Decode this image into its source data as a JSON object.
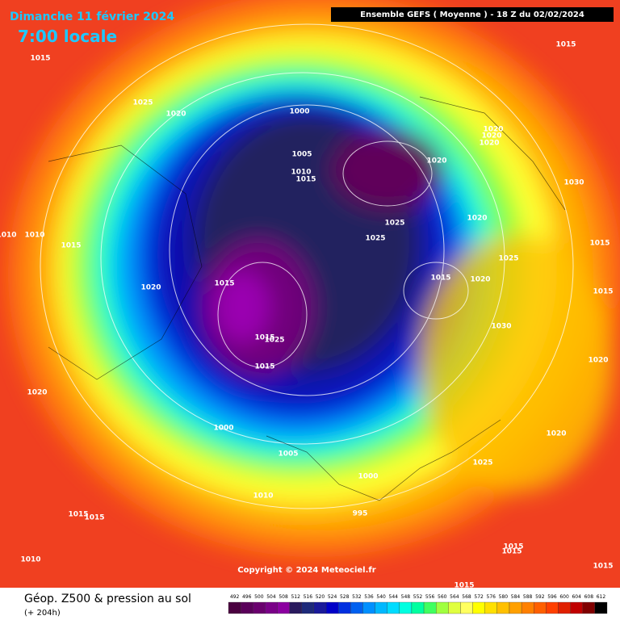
{
  "header": {
    "date": "Dimanche 11 février 2024",
    "time": "7:00 locale",
    "run": "Ensemble GEFS  ( Moyenne )  -  18 Z du 02/02/2024"
  },
  "map": {
    "pressure_labels": [
      "1015",
      "1025",
      "1020",
      "1000",
      "1005",
      "1010",
      "1015",
      "1020",
      "1020",
      "1020",
      "1020",
      "1030",
      "1025",
      "1025",
      "1020",
      "1010",
      "1010",
      "1015",
      "1025",
      "1015",
      "1020",
      "1015",
      "1015",
      "1020",
      "1015",
      "1030",
      "1025",
      "1015",
      "1015",
      "1020",
      "1020",
      "1020",
      "1000",
      "1005",
      "1025",
      "1000",
      "1010",
      "1015",
      "1015",
      "995",
      "1015",
      "1015",
      "1010",
      "1015",
      "1015",
      "1015"
    ],
    "copyright": "Copyright © 2024 Meteociel.fr"
  },
  "footer": {
    "title": "Géop. Z500 & pression au sol",
    "lead": "(+ 204h)"
  },
  "legend": {
    "labels": [
      "492",
      "496",
      "500",
      "504",
      "508",
      "512",
      "516",
      "520",
      "524",
      "528",
      "532",
      "536",
      "540",
      "544",
      "548",
      "552",
      "556",
      "560",
      "564",
      "568",
      "572",
      "576",
      "580",
      "584",
      "588",
      "592",
      "596",
      "600",
      "604",
      "608",
      "612"
    ],
    "colors": [
      "#4b0040",
      "#5a005a",
      "#6a006e",
      "#7a0088",
      "#8c00a0",
      "#2a1a5e",
      "#1e2a7a",
      "#1a1a9a",
      "#0000c8",
      "#0030e0",
      "#0060f0",
      "#0090ff",
      "#00b8ff",
      "#00dcff",
      "#00ffe0",
      "#00ffa0",
      "#40ff60",
      "#a0ff40",
      "#e0ff40",
      "#ffff60",
      "#ffff00",
      "#ffe000",
      "#ffc000",
      "#ffa000",
      "#ff8000",
      "#ff6000",
      "#ff4000",
      "#e02000",
      "#c00000",
      "#800000",
      "#000000"
    ]
  }
}
